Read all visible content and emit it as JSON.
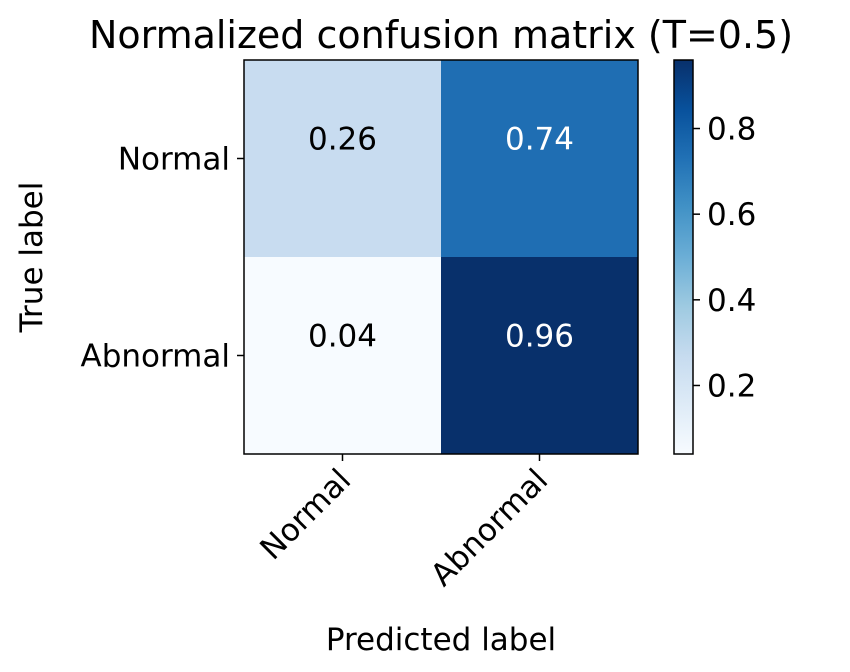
{
  "chart_data": {
    "type": "heatmap",
    "title": "Normalized confusion matrix (T=0.5)",
    "xlabel": "Predicted label",
    "ylabel": "True label",
    "x_categories": [
      "Normal",
      "Abnormal"
    ],
    "y_categories": [
      "Normal",
      "Abnormal"
    ],
    "values": [
      [
        0.26,
        0.74
      ],
      [
        0.04,
        0.96
      ]
    ],
    "value_labels": [
      [
        "0.26",
        "0.74"
      ],
      [
        "0.04",
        "0.96"
      ]
    ],
    "colormap": "Blues",
    "colorbar": {
      "range": [
        0.04,
        0.96
      ],
      "ticks": [
        0.2,
        0.4,
        0.6,
        0.8
      ],
      "tick_labels": [
        "0.2",
        "0.4",
        "0.6",
        "0.8"
      ]
    },
    "grid": false
  },
  "colors": {
    "text_dark": "#000000",
    "text_light": "#ffffff",
    "spine": "#000000"
  }
}
